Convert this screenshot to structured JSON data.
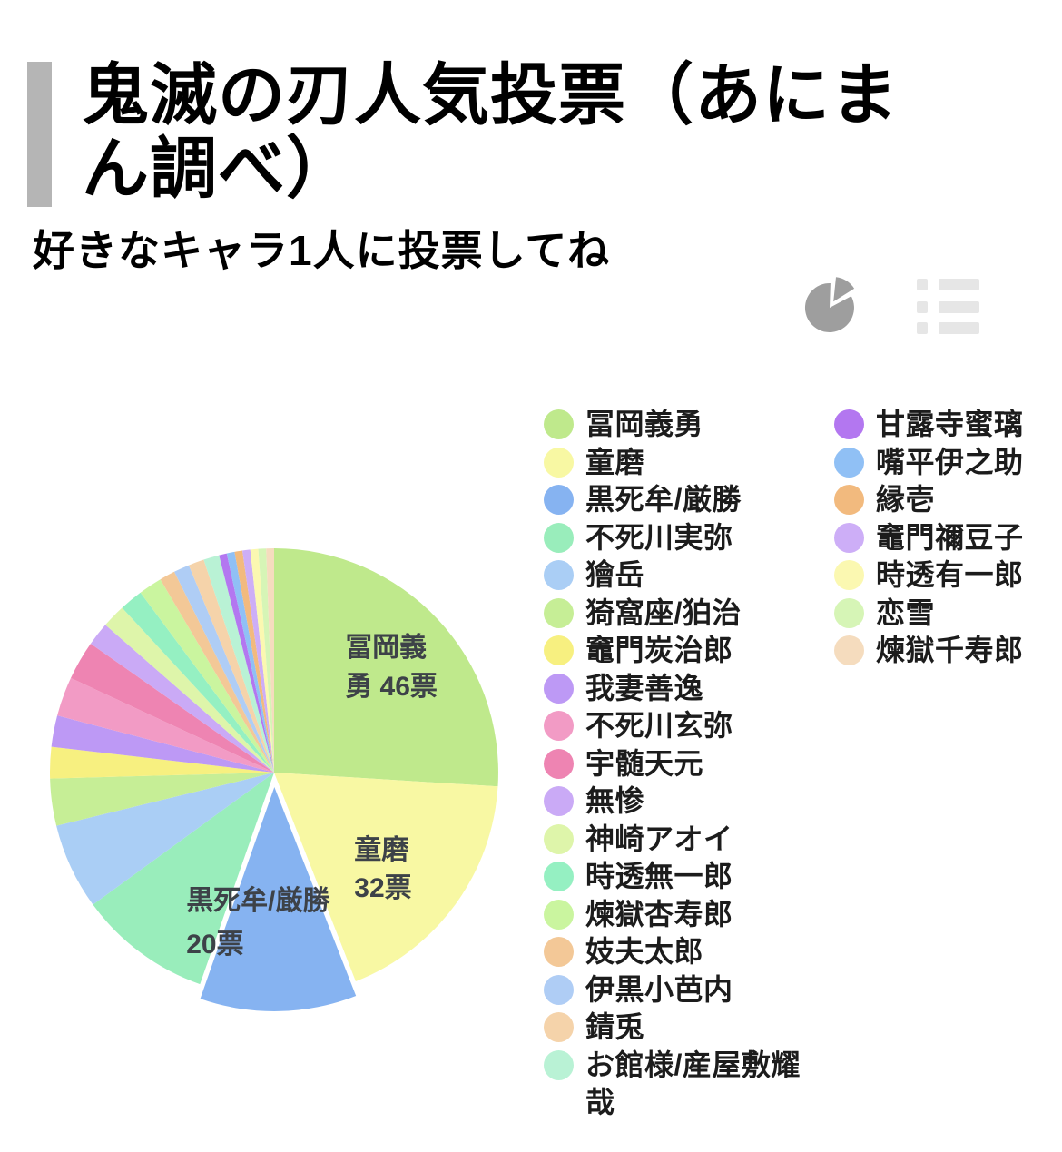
{
  "header": {
    "title_lines": [
      "鬼滅の刃人気投票（あにま",
      "ん調べ）"
    ],
    "title_full": "鬼滅の刃人気投票（あにまん調べ）",
    "subtitle": "好きなキャラ1人に投票してね"
  },
  "toolbar": {
    "views": [
      {
        "icon": "pie-chart-icon",
        "active": true
      },
      {
        "icon": "list-icon",
        "active": false
      }
    ]
  },
  "colors": {
    "background": "#ffffff",
    "accent_bar": "#b5b5b5",
    "icon_active": "#9e9e9e",
    "icon_inactive": "#e6e6e6",
    "pie_label_text": "#3d4248",
    "legend_text": "#1c1c1c"
  },
  "chart_data": {
    "type": "pie",
    "title": "鬼滅の刃人気投票（あにまん調べ）",
    "subtitle": "好きなキャラ1人に投票してね",
    "unit": "票",
    "direction": "clockwise",
    "start_angle_deg": 0,
    "total_votes_estimated": 177,
    "values_estimated_for_unlabeled": true,
    "legend_position": "right",
    "legend_columns": [
      18,
      7
    ],
    "slices": [
      {
        "name": "冨岡義勇",
        "votes": 46,
        "votes_labeled": true,
        "color": "#bfe98c",
        "exploded": false,
        "label_lines": [
          "冨岡義",
          "勇 46票"
        ]
      },
      {
        "name": "童磨",
        "votes": 32,
        "votes_labeled": true,
        "color": "#f8f8a3",
        "exploded": false,
        "label_lines": [
          "童磨",
          "32票"
        ]
      },
      {
        "name": "黒死牟/厳勝",
        "votes": 20,
        "votes_labeled": true,
        "color": "#86b3f1",
        "exploded": true,
        "label_lines": [
          "黒死牟/厳勝",
          "20票"
        ]
      },
      {
        "name": "不死川実弥",
        "votes": 17,
        "votes_labeled": false,
        "color": "#99edbb",
        "exploded": false,
        "label_lines": null
      },
      {
        "name": "獪岳",
        "votes": 11,
        "votes_labeled": false,
        "color": "#aacef5",
        "exploded": false,
        "label_lines": null
      },
      {
        "name": "猗窩座/狛治",
        "votes": 6,
        "votes_labeled": false,
        "color": "#c6ee96",
        "exploded": false,
        "label_lines": null
      },
      {
        "name": "竈門炭治郎",
        "votes": 4,
        "votes_labeled": false,
        "color": "#f7f080",
        "exploded": false,
        "label_lines": null
      },
      {
        "name": "我妻善逸",
        "votes": 4,
        "votes_labeled": false,
        "color": "#bd99f5",
        "exploded": false,
        "label_lines": null
      },
      {
        "name": "不死川玄弥",
        "votes": 5,
        "votes_labeled": false,
        "color": "#f29bc5",
        "exploded": false,
        "label_lines": null
      },
      {
        "name": "宇髄天元",
        "votes": 5,
        "votes_labeled": false,
        "color": "#ee84b2",
        "exploded": false,
        "label_lines": null
      },
      {
        "name": "無惨",
        "votes": 3,
        "votes_labeled": false,
        "color": "#caaaf6",
        "exploded": false,
        "label_lines": null
      },
      {
        "name": "神崎アオイ",
        "votes": 3,
        "votes_labeled": false,
        "color": "#def5aa",
        "exploded": false,
        "label_lines": null
      },
      {
        "name": "時透無一郎",
        "votes": 3,
        "votes_labeled": false,
        "color": "#95f0c2",
        "exploded": false,
        "label_lines": null
      },
      {
        "name": "煉獄杏寿郎",
        "votes": 3,
        "votes_labeled": false,
        "color": "#caf59f",
        "exploded": false,
        "label_lines": null
      },
      {
        "name": "妓夫太郎",
        "votes": 2,
        "votes_labeled": false,
        "color": "#f3c897",
        "exploded": false,
        "label_lines": null
      },
      {
        "name": "伊黒小芭内",
        "votes": 2,
        "votes_labeled": false,
        "color": "#afcdf5",
        "exploded": false,
        "label_lines": null
      },
      {
        "name": "錆兎",
        "votes": 2,
        "votes_labeled": false,
        "color": "#f5d3aa",
        "exploded": false,
        "label_lines": null
      },
      {
        "name": "お館様/産屋敷耀哉",
        "votes": 2,
        "votes_labeled": false,
        "color": "#b9f2d5",
        "exploded": false,
        "label_lines": null
      },
      {
        "name": "甘露寺蜜璃",
        "votes": 1,
        "votes_labeled": false,
        "color": "#b377f0",
        "exploded": false,
        "label_lines": null
      },
      {
        "name": "嘴平伊之助",
        "votes": 1,
        "votes_labeled": false,
        "color": "#90c0f5",
        "exploded": false,
        "label_lines": null
      },
      {
        "name": "縁壱",
        "votes": 1,
        "votes_labeled": false,
        "color": "#f2ba7e",
        "exploded": false,
        "label_lines": null
      },
      {
        "name": "竈門禰豆子",
        "votes": 1,
        "votes_labeled": false,
        "color": "#cdaef7",
        "exploded": false,
        "label_lines": null
      },
      {
        "name": "時透有一郎",
        "votes": 1,
        "votes_labeled": false,
        "color": "#fbf8b1",
        "exploded": false,
        "label_lines": null
      },
      {
        "name": "恋雪",
        "votes": 1,
        "votes_labeled": false,
        "color": "#d6f5b6",
        "exploded": false,
        "label_lines": null
      },
      {
        "name": "煉獄千寿郎",
        "votes": 1,
        "votes_labeled": false,
        "color": "#f5dcbe",
        "exploded": false,
        "label_lines": null
      }
    ]
  }
}
